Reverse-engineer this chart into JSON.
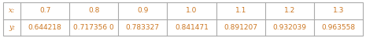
{
  "x_label": "x:",
  "y_label": "y:",
  "x_values": [
    "0.7",
    "0.8",
    "0.9",
    "1.0",
    "1.1",
    "1.2",
    "1.3"
  ],
  "y_values": [
    "0.644218",
    "0.717356 0",
    "0.783327",
    "0.841471",
    "0.891207",
    "0.932039",
    "0.963558"
  ],
  "text_color": "#cc7722",
  "label_color": "#cc7722",
  "border_color": "#aaaaaa",
  "bg_color": "#ffffff",
  "figsize": [
    4.65,
    0.49
  ],
  "dpi": 100,
  "font_size": 6.5
}
